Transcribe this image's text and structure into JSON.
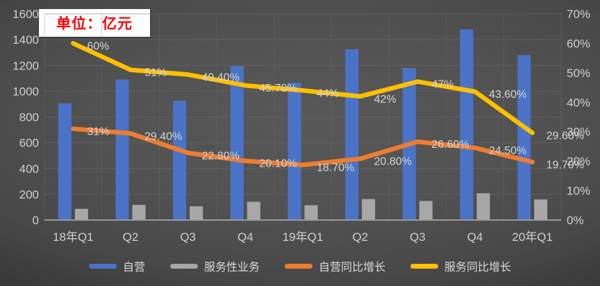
{
  "unit_label": {
    "text": "单位：亿元",
    "color": "#FF0000",
    "bg": "#FFFFFF"
  },
  "chart_data": {
    "type": "bar",
    "subtype": "combo-bar-line",
    "categories": [
      "18年Q1",
      "Q2",
      "Q3",
      "Q4",
      "19年Q1",
      "Q2",
      "Q3",
      "Q4",
      "20年Q1"
    ],
    "series": [
      {
        "name": "自营",
        "chart_type": "bar",
        "axis": "left",
        "color": "#4A73C8",
        "values": [
          905,
          1090,
          925,
          1195,
          1065,
          1325,
          1180,
          1480,
          1280
        ]
      },
      {
        "name": "服务性业务",
        "chart_type": "bar",
        "axis": "left",
        "color": "#A7A7A7",
        "values": [
          87,
          118,
          107,
          142,
          115,
          163,
          148,
          208,
          160
        ]
      },
      {
        "name": "自营同比增长",
        "chart_type": "line",
        "axis": "right",
        "color": "#ED7D31",
        "values": [
          31,
          29.4,
          22.8,
          20.1,
          18.7,
          20.8,
          26.6,
          24.5,
          19.7
        ],
        "labels": [
          "31%",
          "29.40%",
          "22.80%",
          "20.10%",
          "18.70%",
          "20.80%",
          "26.60%",
          "24.50%",
          "19.70%"
        ]
      },
      {
        "name": "服务同比增长",
        "chart_type": "line",
        "axis": "right",
        "color": "#FFC000",
        "values": [
          60,
          51,
          49.4,
          45.7,
          44,
          42,
          47,
          43.6,
          29.6
        ],
        "labels": [
          "60%",
          "51%",
          "49.40%",
          "45.70%",
          "44%",
          "42%",
          "47%",
          "43.60%",
          "29.60%"
        ]
      }
    ],
    "left_axis": {
      "min": 0,
      "max": 1600,
      "step": 200,
      "ticks": [
        "0",
        "200",
        "400",
        "600",
        "800",
        "1000",
        "1200",
        "1400",
        "1600"
      ]
    },
    "right_axis": {
      "min": 0,
      "max": 70,
      "step": 10,
      "ticks": [
        "0%",
        "10%",
        "20%",
        "30%",
        "40%",
        "50%",
        "60%",
        "70%"
      ]
    },
    "legend": {
      "position": "bottom",
      "items": [
        "自营",
        "服务性业务",
        "自营同比增长",
        "服务同比增长"
      ]
    },
    "grid": {
      "horizontal": true,
      "vertical": true
    },
    "style": {
      "tick_color": "#d0d0d0",
      "data_label_color": "#d6d6d6",
      "gridline_color": "#6e6e6e",
      "axis_line_color": "#9a9a9a"
    }
  }
}
